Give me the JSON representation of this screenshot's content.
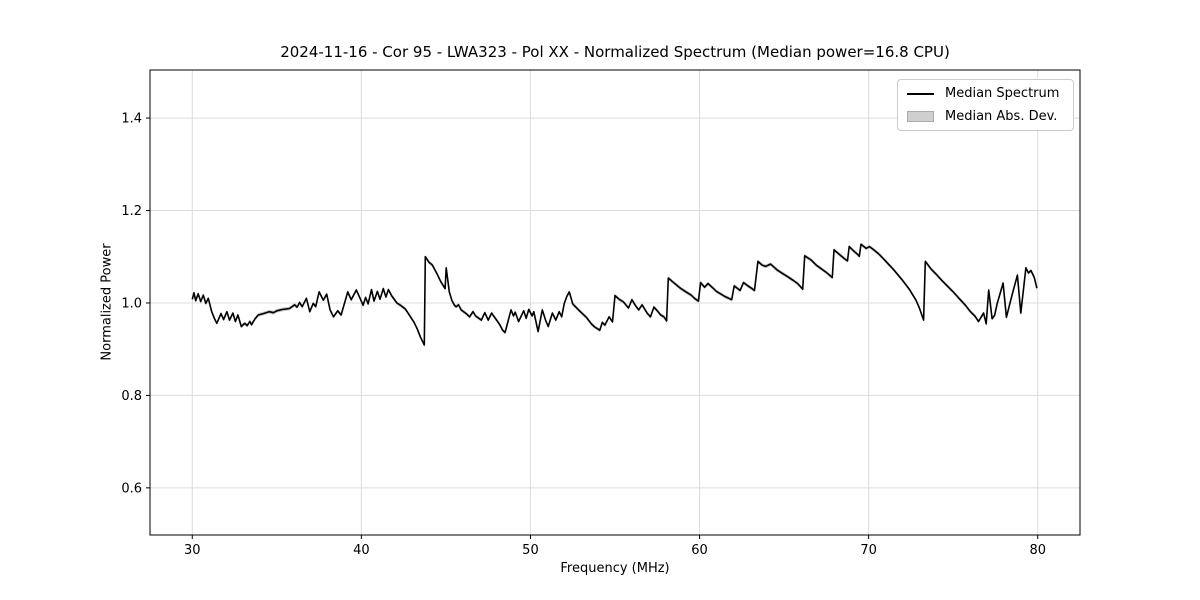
{
  "colors": {
    "line": "#000000",
    "band": "#c8c8c8",
    "grid": "#dcdcdc",
    "spine": "#000000",
    "background": "#ffffff",
    "legend_border": "#cccccc",
    "legend_patch_fill": "#cfcfcf",
    "legend_patch_edge": "#ababab"
  },
  "legend": {
    "entries": [
      {
        "label": "Median Spectrum",
        "type": "line",
        "color": "#000000"
      },
      {
        "label": "Median Abs. Dev.",
        "type": "patch",
        "color": "#cfcfcf"
      }
    ]
  },
  "chart_data": {
    "type": "line",
    "title": "2024-11-16 - Cor 95 - LWA323 - Pol XX - Normalized Spectrum (Median power=16.8 CPU)",
    "xlabel": "Frequency (MHz)",
    "ylabel": "Normalized Power",
    "xlim": [
      27.5,
      82.5
    ],
    "ylim": [
      0.498,
      1.504
    ],
    "xticks": [
      "30",
      "40",
      "50",
      "60",
      "70",
      "80"
    ],
    "yticks": [
      "0.6",
      "0.8",
      "1.0",
      "1.2",
      "1.4"
    ],
    "grid": true,
    "legend_position": "upper right",
    "series": [
      {
        "name": "Median Spectrum",
        "points": [
          [
            30.0,
            1.008
          ],
          [
            30.1,
            1.022
          ],
          [
            30.2,
            1.005
          ],
          [
            30.35,
            1.02
          ],
          [
            30.5,
            1.003
          ],
          [
            30.65,
            1.017
          ],
          [
            30.8,
            0.999
          ],
          [
            30.95,
            1.01
          ],
          [
            31.15,
            0.981
          ],
          [
            31.3,
            0.967
          ],
          [
            31.45,
            0.956
          ],
          [
            31.7,
            0.977
          ],
          [
            31.85,
            0.964
          ],
          [
            32.05,
            0.981
          ],
          [
            32.2,
            0.963
          ],
          [
            32.4,
            0.978
          ],
          [
            32.55,
            0.96
          ],
          [
            32.7,
            0.974
          ],
          [
            32.9,
            0.949
          ],
          [
            33.1,
            0.956
          ],
          [
            33.25,
            0.951
          ],
          [
            33.4,
            0.96
          ],
          [
            33.5,
            0.953
          ],
          [
            33.7,
            0.965
          ],
          [
            33.9,
            0.974
          ],
          [
            34.2,
            0.977
          ],
          [
            34.55,
            0.981
          ],
          [
            34.8,
            0.979
          ],
          [
            35.0,
            0.983
          ],
          [
            35.35,
            0.986
          ],
          [
            35.75,
            0.988
          ],
          [
            36.05,
            0.996
          ],
          [
            36.2,
            0.991
          ],
          [
            36.35,
            1.001
          ],
          [
            36.5,
            0.992
          ],
          [
            36.75,
            1.01
          ],
          [
            36.95,
            0.981
          ],
          [
            37.15,
            0.999
          ],
          [
            37.3,
            0.992
          ],
          [
            37.5,
            1.024
          ],
          [
            37.75,
            1.006
          ],
          [
            37.95,
            1.019
          ],
          [
            38.15,
            0.985
          ],
          [
            38.35,
            0.97
          ],
          [
            38.6,
            0.983
          ],
          [
            38.8,
            0.974
          ],
          [
            39.2,
            1.024
          ],
          [
            39.4,
            1.007
          ],
          [
            39.7,
            1.028
          ],
          [
            39.9,
            1.012
          ],
          [
            40.1,
            0.995
          ],
          [
            40.25,
            1.012
          ],
          [
            40.4,
            0.998
          ],
          [
            40.6,
            1.029
          ],
          [
            40.75,
            1.004
          ],
          [
            40.95,
            1.025
          ],
          [
            41.1,
            1.008
          ],
          [
            41.3,
            1.031
          ],
          [
            41.45,
            1.013
          ],
          [
            41.6,
            1.029
          ],
          [
            41.8,
            1.015
          ],
          [
            42.1,
            1.0
          ],
          [
            42.35,
            0.994
          ],
          [
            42.6,
            0.987
          ],
          [
            42.85,
            0.973
          ],
          [
            43.1,
            0.959
          ],
          [
            43.3,
            0.944
          ],
          [
            43.5,
            0.926
          ],
          [
            43.72,
            0.909
          ],
          [
            43.78,
            1.1
          ],
          [
            44.0,
            1.088
          ],
          [
            44.2,
            1.082
          ],
          [
            44.5,
            1.061
          ],
          [
            44.7,
            1.046
          ],
          [
            44.95,
            1.031
          ],
          [
            45.02,
            1.076
          ],
          [
            45.2,
            1.024
          ],
          [
            45.35,
            1.006
          ],
          [
            45.5,
            0.995
          ],
          [
            45.6,
            0.992
          ],
          [
            45.75,
            0.996
          ],
          [
            45.9,
            0.985
          ],
          [
            46.2,
            0.977
          ],
          [
            46.4,
            0.97
          ],
          [
            46.6,
            0.981
          ],
          [
            46.75,
            0.972
          ],
          [
            47.1,
            0.963
          ],
          [
            47.3,
            0.979
          ],
          [
            47.5,
            0.963
          ],
          [
            47.7,
            0.978
          ],
          [
            48.0,
            0.963
          ],
          [
            48.2,
            0.952
          ],
          [
            48.35,
            0.941
          ],
          [
            48.5,
            0.936
          ],
          [
            48.85,
            0.985
          ],
          [
            49.0,
            0.972
          ],
          [
            49.1,
            0.98
          ],
          [
            49.3,
            0.96
          ],
          [
            49.6,
            0.983
          ],
          [
            49.75,
            0.967
          ],
          [
            49.9,
            0.986
          ],
          [
            50.1,
            0.972
          ],
          [
            50.2,
            0.981
          ],
          [
            50.45,
            0.938
          ],
          [
            50.7,
            0.985
          ],
          [
            50.9,
            0.962
          ],
          [
            51.05,
            0.949
          ],
          [
            51.3,
            0.978
          ],
          [
            51.5,
            0.963
          ],
          [
            51.7,
            0.981
          ],
          [
            51.85,
            0.97
          ],
          [
            52.0,
            0.999
          ],
          [
            52.15,
            1.014
          ],
          [
            52.3,
            1.024
          ],
          [
            52.5,
            0.998
          ],
          [
            52.9,
            0.983
          ],
          [
            53.3,
            0.969
          ],
          [
            53.6,
            0.955
          ],
          [
            53.8,
            0.948
          ],
          [
            54.1,
            0.941
          ],
          [
            54.25,
            0.958
          ],
          [
            54.4,
            0.952
          ],
          [
            54.65,
            0.97
          ],
          [
            54.85,
            0.959
          ],
          [
            55.0,
            1.016
          ],
          [
            55.25,
            1.008
          ],
          [
            55.5,
            1.002
          ],
          [
            55.8,
            0.989
          ],
          [
            56.0,
            1.007
          ],
          [
            56.2,
            0.995
          ],
          [
            56.4,
            0.985
          ],
          [
            56.6,
            0.996
          ],
          [
            56.9,
            0.978
          ],
          [
            57.1,
            0.97
          ],
          [
            57.3,
            0.991
          ],
          [
            57.5,
            0.983
          ],
          [
            57.7,
            0.974
          ],
          [
            57.9,
            0.97
          ],
          [
            58.05,
            0.961
          ],
          [
            58.15,
            1.054
          ],
          [
            58.5,
            1.043
          ],
          [
            58.9,
            1.031
          ],
          [
            59.2,
            1.024
          ],
          [
            59.5,
            1.017
          ],
          [
            59.7,
            1.01
          ],
          [
            59.93,
            1.004
          ],
          [
            60.06,
            1.044
          ],
          [
            60.3,
            1.034
          ],
          [
            60.5,
            1.042
          ],
          [
            60.8,
            1.032
          ],
          [
            61.0,
            1.025
          ],
          [
            61.5,
            1.014
          ],
          [
            61.9,
            1.007
          ],
          [
            62.05,
            1.037
          ],
          [
            62.4,
            1.027
          ],
          [
            62.6,
            1.044
          ],
          [
            62.9,
            1.036
          ],
          [
            63.1,
            1.031
          ],
          [
            63.25,
            1.027
          ],
          [
            63.45,
            1.09
          ],
          [
            63.7,
            1.082
          ],
          [
            63.9,
            1.079
          ],
          [
            64.2,
            1.084
          ],
          [
            64.45,
            1.076
          ],
          [
            64.6,
            1.071
          ],
          [
            64.9,
            1.064
          ],
          [
            65.2,
            1.057
          ],
          [
            65.5,
            1.05
          ],
          [
            65.8,
            1.042
          ],
          [
            66.1,
            1.03
          ],
          [
            66.22,
            1.102
          ],
          [
            66.6,
            1.093
          ],
          [
            66.9,
            1.082
          ],
          [
            67.2,
            1.074
          ],
          [
            67.5,
            1.066
          ],
          [
            67.85,
            1.055
          ],
          [
            67.95,
            1.115
          ],
          [
            68.3,
            1.104
          ],
          [
            68.6,
            1.095
          ],
          [
            68.75,
            1.091
          ],
          [
            68.85,
            1.122
          ],
          [
            69.1,
            1.113
          ],
          [
            69.35,
            1.105
          ],
          [
            69.45,
            1.101
          ],
          [
            69.55,
            1.127
          ],
          [
            69.85,
            1.118
          ],
          [
            70.05,
            1.122
          ],
          [
            70.3,
            1.115
          ],
          [
            70.6,
            1.106
          ],
          [
            71.0,
            1.091
          ],
          [
            71.5,
            1.071
          ],
          [
            72.0,
            1.049
          ],
          [
            72.4,
            1.03
          ],
          [
            72.8,
            1.006
          ],
          [
            73.0,
            0.989
          ],
          [
            73.25,
            0.963
          ],
          [
            73.35,
            1.09
          ],
          [
            73.7,
            1.073
          ],
          [
            74.0,
            1.062
          ],
          [
            74.3,
            1.05
          ],
          [
            74.7,
            1.035
          ],
          [
            75.0,
            1.024
          ],
          [
            75.4,
            1.008
          ],
          [
            75.7,
            0.996
          ],
          [
            76.0,
            0.982
          ],
          [
            76.3,
            0.971
          ],
          [
            76.5,
            0.96
          ],
          [
            76.8,
            0.978
          ],
          [
            76.95,
            0.955
          ],
          [
            77.1,
            1.028
          ],
          [
            77.3,
            0.966
          ],
          [
            77.45,
            0.973
          ],
          [
            77.6,
            0.998
          ],
          [
            77.95,
            1.043
          ],
          [
            78.15,
            0.969
          ],
          [
            78.5,
            1.02
          ],
          [
            78.8,
            1.06
          ],
          [
            79.0,
            0.978
          ],
          [
            79.3,
            1.076
          ],
          [
            79.45,
            1.065
          ],
          [
            79.6,
            1.07
          ],
          [
            79.8,
            1.055
          ],
          [
            79.95,
            1.032
          ]
        ]
      },
      {
        "name": "Median Abs. Dev.",
        "band_halfwidth": 0.004
      }
    ]
  }
}
